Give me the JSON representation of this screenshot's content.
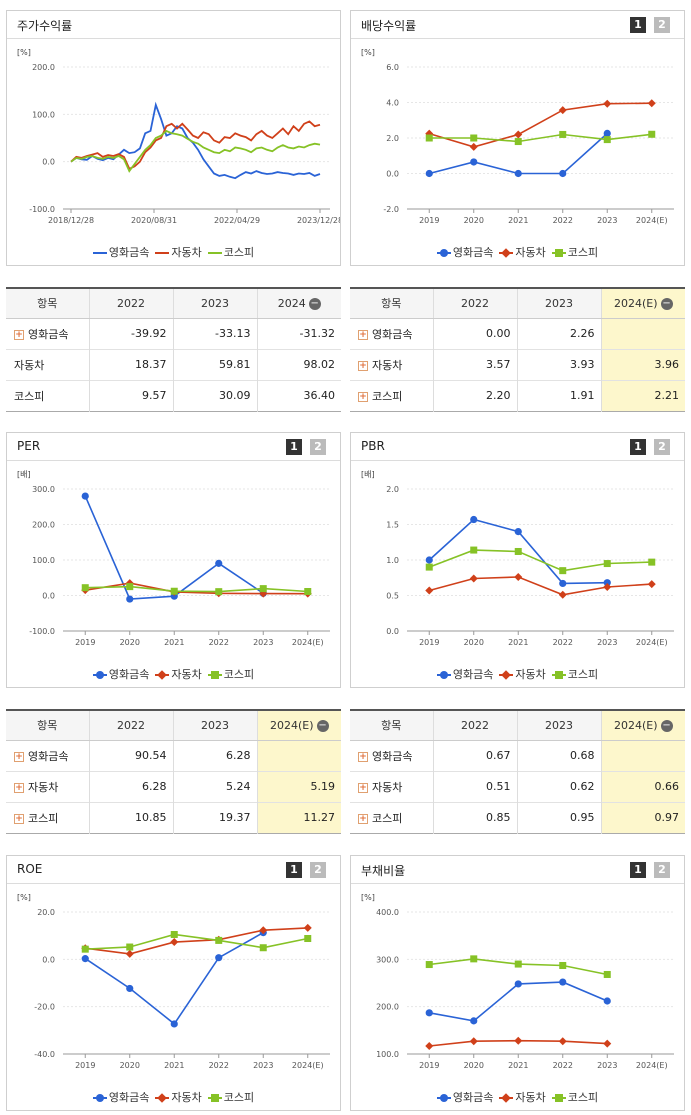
{
  "series_names": [
    "영화금속",
    "자동차",
    "코스피"
  ],
  "colors": {
    "company": "#2a63d6",
    "auto": "#d0401a",
    "kospi": "#86c226",
    "estimate_bg": "#fdf7cc"
  },
  "page_buttons": [
    "1",
    "2"
  ],
  "tables": {
    "price": {
      "headers": [
        "항목",
        "2022",
        "2023",
        "2024"
      ],
      "rows": [
        {
          "label": "영화금속",
          "values": [
            "-39.92",
            "-33.13",
            "-31.32"
          ]
        },
        {
          "label": "자동차",
          "values": [
            "18.37",
            "59.81",
            "98.02"
          ]
        },
        {
          "label": "코스피",
          "values": [
            "9.57",
            "30.09",
            "36.40"
          ]
        }
      ]
    },
    "dividend": {
      "headers": [
        "항목",
        "2022",
        "2023",
        "2024(E)"
      ],
      "rows": [
        {
          "label": "영화금속",
          "values": [
            "0.00",
            "2.26",
            ""
          ]
        },
        {
          "label": "자동차",
          "values": [
            "3.57",
            "3.93",
            "3.96"
          ]
        },
        {
          "label": "코스피",
          "values": [
            "2.20",
            "1.91",
            "2.21"
          ]
        }
      ]
    },
    "per": {
      "headers": [
        "항목",
        "2022",
        "2023",
        "2024(E)"
      ],
      "rows": [
        {
          "label": "영화금속",
          "values": [
            "90.54",
            "6.28",
            ""
          ]
        },
        {
          "label": "자동차",
          "values": [
            "6.28",
            "5.24",
            "5.19"
          ]
        },
        {
          "label": "코스피",
          "values": [
            "10.85",
            "19.37",
            "11.27"
          ]
        }
      ]
    },
    "pbr": {
      "headers": [
        "항목",
        "2022",
        "2023",
        "2024(E)"
      ],
      "rows": [
        {
          "label": "영화금속",
          "values": [
            "0.67",
            "0.68",
            ""
          ]
        },
        {
          "label": "자동차",
          "values": [
            "0.51",
            "0.62",
            "0.66"
          ]
        },
        {
          "label": "코스피",
          "values": [
            "0.85",
            "0.95",
            "0.97"
          ]
        }
      ]
    }
  },
  "chart_data": [
    {
      "id": "price",
      "type": "line",
      "title": "주가수익률",
      "unit": "[%]",
      "ylim": [
        -100,
        200
      ],
      "yticks": [
        "200.0",
        "100.0",
        "0.0",
        "-100.0"
      ],
      "xticks": [
        "2018/12/28",
        "2020/08/31",
        "2022/04/29",
        "2023/12/28"
      ],
      "series": [
        {
          "name": "영화금속",
          "values": [
            0,
            8,
            5,
            4,
            12,
            6,
            3,
            8,
            5,
            15,
            25,
            18,
            20,
            28,
            60,
            65,
            120,
            90,
            55,
            60,
            75,
            70,
            50,
            40,
            25,
            5,
            -10,
            -25,
            -30,
            -28,
            -32,
            -35,
            -28,
            -22,
            -25,
            -20,
            -24,
            -26,
            -25,
            -22,
            -24,
            -25,
            -28,
            -25,
            -26,
            -24,
            -30,
            -26
          ]
        },
        {
          "name": "자동차",
          "values": [
            0,
            10,
            8,
            12,
            15,
            18,
            10,
            14,
            12,
            16,
            10,
            -15,
            -10,
            0,
            20,
            30,
            45,
            50,
            75,
            80,
            70,
            80,
            68,
            55,
            50,
            62,
            58,
            45,
            40,
            52,
            50,
            60,
            55,
            52,
            45,
            58,
            65,
            55,
            50,
            60,
            70,
            58,
            75,
            65,
            80,
            85,
            75,
            78
          ]
        },
        {
          "name": "코스피",
          "values": [
            0,
            8,
            6,
            10,
            12,
            8,
            6,
            10,
            8,
            12,
            5,
            -20,
            -5,
            10,
            25,
            35,
            50,
            55,
            65,
            60,
            58,
            55,
            48,
            42,
            38,
            30,
            25,
            20,
            18,
            25,
            22,
            30,
            28,
            25,
            20,
            28,
            30,
            25,
            22,
            30,
            35,
            30,
            28,
            32,
            30,
            35,
            38,
            36
          ]
        }
      ]
    },
    {
      "id": "dividend",
      "type": "line",
      "title": "배당수익률",
      "unit": "[%]",
      "ylim": [
        -2,
        6
      ],
      "yticks": [
        "6.0",
        "4.0",
        "2.0",
        "0.0",
        "-2.0"
      ],
      "categories": [
        "2019",
        "2020",
        "2021",
        "2022",
        "2023",
        "2024(E)"
      ],
      "series": [
        {
          "name": "영화금속",
          "values": [
            0,
            0.65,
            0,
            0,
            2.26,
            null
          ]
        },
        {
          "name": "자동차",
          "values": [
            2.25,
            1.5,
            2.2,
            3.57,
            3.93,
            3.96
          ]
        },
        {
          "name": "코스피",
          "values": [
            2.0,
            2.0,
            1.8,
            2.2,
            1.91,
            2.21
          ]
        }
      ]
    },
    {
      "id": "per",
      "type": "line",
      "title": "PER",
      "unit": "[배]",
      "ylim": [
        -100,
        300
      ],
      "yticks": [
        "300.0",
        "200.0",
        "100.0",
        "0.0",
        "-100.0"
      ],
      "categories": [
        "2019",
        "2020",
        "2021",
        "2022",
        "2023",
        "2024(E)"
      ],
      "series": [
        {
          "name": "영화금속",
          "values": [
            280,
            -10,
            -2,
            90.54,
            6.28,
            null
          ]
        },
        {
          "name": "자동차",
          "values": [
            15,
            35,
            10,
            6.28,
            5.24,
            5.19
          ]
        },
        {
          "name": "코스피",
          "values": [
            22,
            25,
            12,
            10.85,
            19.37,
            11.27
          ]
        }
      ]
    },
    {
      "id": "pbr",
      "type": "line",
      "title": "PBR",
      "unit": "[배]",
      "ylim": [
        0,
        2
      ],
      "yticks": [
        "2.0",
        "1.5",
        "1.0",
        "0.5",
        "0.0"
      ],
      "categories": [
        "2019",
        "2020",
        "2021",
        "2022",
        "2023",
        "2024(E)"
      ],
      "series": [
        {
          "name": "영화금속",
          "values": [
            1.0,
            1.57,
            1.4,
            0.67,
            0.68,
            null
          ]
        },
        {
          "name": "자동차",
          "values": [
            0.57,
            0.74,
            0.76,
            0.51,
            0.62,
            0.66
          ]
        },
        {
          "name": "코스피",
          "values": [
            0.9,
            1.14,
            1.12,
            0.85,
            0.95,
            0.97
          ]
        }
      ]
    },
    {
      "id": "roe",
      "type": "line",
      "title": "ROE",
      "unit": "[%]",
      "ylim": [
        -40,
        20
      ],
      "yticks": [
        "20.0",
        "0.0",
        "-20.0",
        "-40.0"
      ],
      "categories": [
        "2019",
        "2020",
        "2021",
        "2022",
        "2023",
        "2024(E)"
      ],
      "series": [
        {
          "name": "영화금속",
          "values": [
            0.3,
            -12.3,
            -27.3,
            0.7,
            11.3,
            null
          ]
        },
        {
          "name": "자동차",
          "values": [
            4.7,
            2.3,
            7.3,
            8.3,
            12.3,
            13.3
          ]
        },
        {
          "name": "코스피",
          "values": [
            4.3,
            5.2,
            10.5,
            8.0,
            4.9,
            8.8
          ]
        }
      ]
    },
    {
      "id": "debt",
      "type": "line",
      "title": "부채비율",
      "unit": "[%]",
      "ylim": [
        100,
        400
      ],
      "yticks": [
        "400.0",
        "300.0",
        "200.0",
        "100.0"
      ],
      "categories": [
        "2019",
        "2020",
        "2021",
        "2022",
        "2023",
        "2024(E)"
      ],
      "series": [
        {
          "name": "영화금속",
          "values": [
            187,
            170,
            248,
            252,
            212,
            null
          ]
        },
        {
          "name": "자동차",
          "values": [
            117,
            127,
            128,
            127,
            122,
            null
          ]
        },
        {
          "name": "코스피",
          "values": [
            289,
            301,
            290,
            287,
            268,
            null
          ]
        }
      ]
    }
  ]
}
